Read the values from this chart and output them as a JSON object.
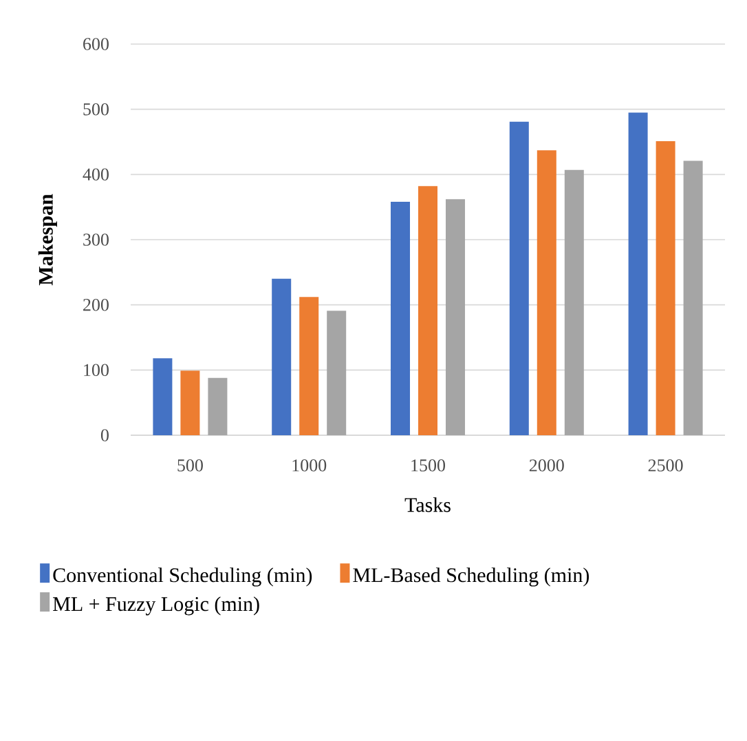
{
  "chart_data": {
    "type": "bar",
    "xlabel": "Tasks",
    "ylabel": "Makespan",
    "categories": [
      "500",
      "1000",
      "1500",
      "2000",
      "2500"
    ],
    "series": [
      {
        "name": "Conventional Scheduling (min)",
        "color": "#4472c4",
        "values": [
          118,
          240,
          358,
          481,
          495
        ]
      },
      {
        "name": "ML-Based Scheduling (min)",
        "color": "#ed7d31",
        "values": [
          99,
          212,
          382,
          437,
          451
        ]
      },
      {
        "name": "ML + Fuzzy Logic (min)",
        "color": "#a5a5a5",
        "values": [
          88,
          191,
          362,
          407,
          421
        ]
      }
    ],
    "ylim": [
      0,
      600
    ],
    "yticks": [
      0,
      100,
      200,
      300,
      400,
      500,
      600
    ],
    "grid": "y",
    "legend": "bottom"
  }
}
